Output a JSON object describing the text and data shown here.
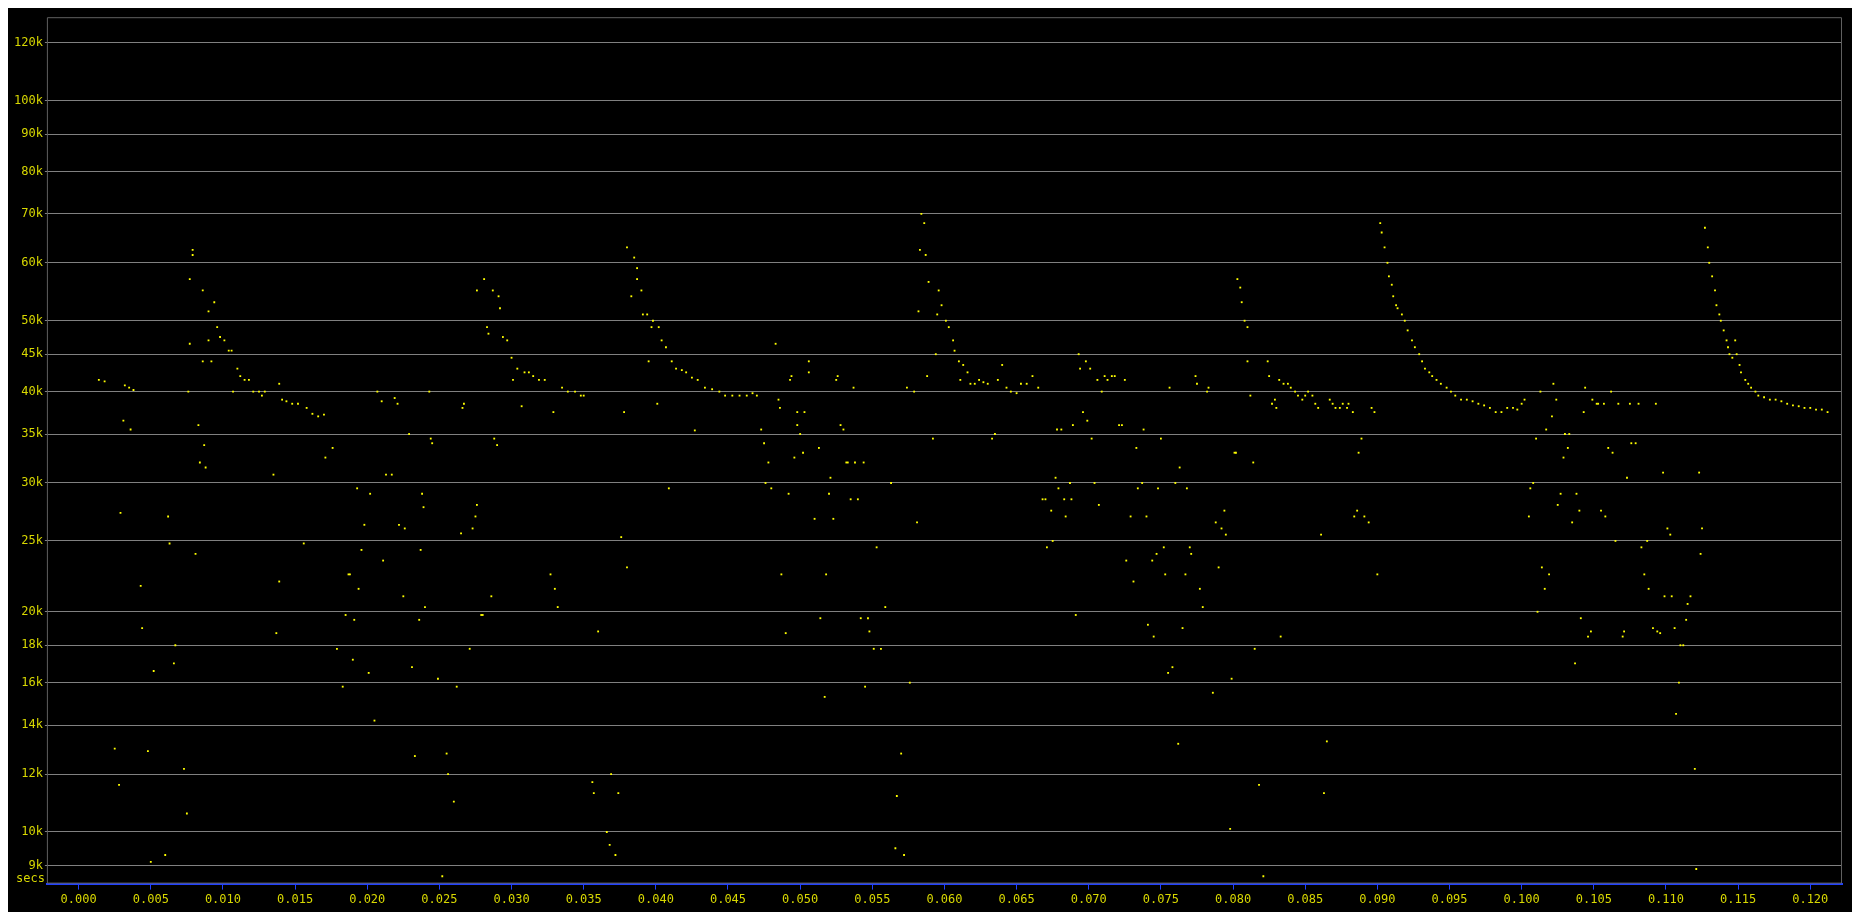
{
  "chart_data": {
    "type": "scatter",
    "xlabel": "secs",
    "color": "#ffff00",
    "marker": "square",
    "log": "y",
    "grid": "y",
    "xlim": [
      -0.0022,
      0.1222
    ],
    "ylim": [
      8500,
      130000
    ],
    "xticks": [
      {
        "value": 0,
        "label": "0.000"
      },
      {
        "value": 0.005,
        "label": "0.005"
      },
      {
        "value": 0.01,
        "label": "0.010"
      },
      {
        "value": 0.015,
        "label": "0.015"
      },
      {
        "value": 0.02,
        "label": "0.020"
      },
      {
        "value": 0.025,
        "label": "0.025"
      },
      {
        "value": 0.03,
        "label": "0.030"
      },
      {
        "value": 0.035,
        "label": "0.035"
      },
      {
        "value": 0.04,
        "label": "0.040"
      },
      {
        "value": 0.045,
        "label": "0.045"
      },
      {
        "value": 0.05,
        "label": "0.050"
      },
      {
        "value": 0.055,
        "label": "0.055"
      },
      {
        "value": 0.06,
        "label": "0.060"
      },
      {
        "value": 0.065,
        "label": "0.065"
      },
      {
        "value": 0.07,
        "label": "0.070"
      },
      {
        "value": 0.075,
        "label": "0.075"
      },
      {
        "value": 0.08,
        "label": "0.080"
      },
      {
        "value": 0.085,
        "label": "0.085"
      },
      {
        "value": 0.09,
        "label": "0.090"
      },
      {
        "value": 0.095,
        "label": "0.095"
      },
      {
        "value": 0.1,
        "label": "0.100"
      },
      {
        "value": 0.105,
        "label": "0.105"
      },
      {
        "value": 0.11,
        "label": "0.110"
      },
      {
        "value": 0.115,
        "label": "0.115"
      },
      {
        "value": 0.12,
        "label": "0.120"
      }
    ],
    "yticks": [
      {
        "value": 9000,
        "label": "9k"
      },
      {
        "value": 10000,
        "label": "10k"
      },
      {
        "value": 12000,
        "label": "12k"
      },
      {
        "value": 14000,
        "label": "14k"
      },
      {
        "value": 16000,
        "label": "16k"
      },
      {
        "value": 18000,
        "label": "18k"
      },
      {
        "value": 20000,
        "label": "20k"
      },
      {
        "value": 25000,
        "label": "25k"
      },
      {
        "value": 30000,
        "label": "30k"
      },
      {
        "value": 35000,
        "label": "35k"
      },
      {
        "value": 40000,
        "label": "40k"
      },
      {
        "value": 45000,
        "label": "45k"
      },
      {
        "value": 50000,
        "label": "50k"
      },
      {
        "value": 60000,
        "label": "60k"
      },
      {
        "value": 70000,
        "label": "70k"
      },
      {
        "value": 80000,
        "label": "80k"
      },
      {
        "value": 90000,
        "label": "90k"
      },
      {
        "value": 100000,
        "label": "100k"
      },
      {
        "value": 120000,
        "label": "120k"
      }
    ],
    "x": [
      0.0014,
      0.0018,
      0.0032,
      0.0035,
      0.0038,
      0.0031,
      0.0036,
      0.0029,
      0.0025,
      0.0028,
      0.0043,
      0.0044,
      0.0048,
      0.0052,
      0.005,
      0.006,
      0.0062,
      0.0063,
      0.0066,
      0.0067,
      0.0073,
      0.0075,
      0.0076,
      0.0077,
      0.0077,
      0.0079,
      0.0079,
      0.0081,
      0.0083,
      0.0084,
      0.0086,
      0.0086,
      0.0087,
      0.0088,
      0.009,
      0.009,
      0.0092,
      0.0094,
      0.0096,
      0.0098,
      0.0101,
      0.0104,
      0.0106,
      0.0107,
      0.011,
      0.0112,
      0.0115,
      0.0118,
      0.0121,
      0.0125,
      0.0127,
      0.0129,
      0.0135,
      0.0137,
      0.0139,
      0.0139,
      0.0141,
      0.0144,
      0.0148,
      0.0152,
      0.0156,
      0.0158,
      0.0162,
      0.0166,
      0.017,
      0.0171,
      0.0176,
      0.0179,
      0.0183,
      0.0185,
      0.0187,
      0.0188,
      0.019,
      0.0191,
      0.0193,
      0.0194,
      0.0196,
      0.0198,
      0.0201,
      0.0202,
      0.0205,
      0.0207,
      0.021,
      0.0211,
      0.0213,
      0.0217,
      0.0219,
      0.0221,
      0.0222,
      0.0225,
      0.0226,
      0.0229,
      0.0231,
      0.0233,
      0.0236,
      0.0237,
      0.0238,
      0.0239,
      0.024,
      0.0243,
      0.0244,
      0.0245,
      0.0249,
      0.0252,
      0.0255,
      0.0256,
      0.026,
      0.0262,
      0.0265,
      0.0266,
      0.0267,
      0.0271,
      0.0273,
      0.0275,
      0.0276,
      0.0276,
      0.0279,
      0.028,
      0.0281,
      0.0283,
      0.0284,
      0.0286,
      0.0287,
      0.0288,
      0.029,
      0.0291,
      0.0292,
      0.0294,
      0.0297,
      0.03,
      0.0301,
      0.0304,
      0.0307,
      0.0309,
      0.0312,
      0.0315,
      0.0319,
      0.0323,
      0.0327,
      0.0329,
      0.033,
      0.0332,
      0.0335,
      0.0339,
      0.0344,
      0.0348,
      0.035,
      0.0356,
      0.0357,
      0.036,
      0.0366,
      0.0368,
      0.0369,
      0.0372,
      0.0374,
      0.0376,
      0.0378,
      0.038,
      0.038,
      0.0383,
      0.0385,
      0.0387,
      0.0387,
      0.039,
      0.0391,
      0.0394,
      0.0395,
      0.0397,
      0.0398,
      0.0401,
      0.0402,
      0.0404,
      0.0407,
      0.0409,
      0.0411,
      0.0414,
      0.0418,
      0.0421,
      0.0425,
      0.0427,
      0.0429,
      0.0434,
      0.0439,
      0.0444,
      0.0448,
      0.0453,
      0.0458,
      0.0463,
      0.0467,
      0.047,
      0.0473,
      0.0475,
      0.0476,
      0.0478,
      0.048,
      0.0483,
      0.0485,
      0.0486,
      0.0487,
      0.049,
      0.0492,
      0.0493,
      0.0494,
      0.0496,
      0.0498,
      0.0498,
      0.05,
      0.0502,
      0.0503,
      0.0506,
      0.0506,
      0.051,
      0.0513,
      0.0514,
      0.0517,
      0.0518,
      0.052,
      0.0521,
      0.0523,
      0.0525,
      0.0526,
      0.0528,
      0.053,
      0.0532,
      0.0533,
      0.0535,
      0.0537,
      0.0538,
      0.054,
      0.0542,
      0.0544,
      0.0545,
      0.0547,
      0.0548,
      0.0551,
      0.0553,
      0.0556,
      0.0559,
      0.0563,
      0.0566,
      0.0567,
      0.057,
      0.0572,
      0.0574,
      0.0576,
      0.0579,
      0.0581,
      0.0582,
      0.0583,
      0.0584,
      0.0586,
      0.0587,
      0.0588,
      0.0589,
      0.0592,
      0.0594,
      0.0595,
      0.0596,
      0.0598,
      0.0601,
      0.0603,
      0.0606,
      0.0607,
      0.061,
      0.0611,
      0.0613,
      0.0616,
      0.0618,
      0.0621,
      0.0624,
      0.0627,
      0.063,
      0.0633,
      0.0635,
      0.0637,
      0.064,
      0.0643,
      0.0646,
      0.065,
      0.0653,
      0.0657,
      0.0661,
      0.0665,
      0.0668,
      0.067,
      0.0671,
      0.0674,
      0.0675,
      0.0677,
      0.0678,
      0.0679,
      0.0681,
      0.0683,
      0.0684,
      0.0687,
      0.0688,
      0.0689,
      0.0691,
      0.0693,
      0.0694,
      0.0696,
      0.0698,
      0.0699,
      0.0701,
      0.0702,
      0.0704,
      0.0706,
      0.0707,
      0.0709,
      0.0711,
      0.0713,
      0.0716,
      0.0718,
      0.0721,
      0.0723,
      0.0725,
      0.0726,
      0.0729,
      0.0731,
      0.0733,
      0.0734,
      0.0737,
      0.0738,
      0.074,
      0.0741,
      0.0744,
      0.0745,
      0.0747,
      0.0748,
      0.075,
      0.0752,
      0.0753,
      0.0755,
      0.0756,
      0.0758,
      0.076,
      0.0762,
      0.0763,
      0.0765,
      0.0767,
      0.0768,
      0.077,
      0.0771,
      0.0774,
      0.0775,
      0.0777,
      0.0779,
      0.0782,
      0.0783,
      0.0786,
      0.0788,
      0.079,
      0.0792,
      0.0794,
      0.0795,
      0.0798,
      0.0799,
      0.0801,
      0.0802,
      0.0803,
      0.0805,
      0.0806,
      0.0808,
      0.081,
      0.081,
      0.0812,
      0.0814,
      0.0815,
      0.0818,
      0.0821,
      0.0824,
      0.0825,
      0.0827,
      0.0829,
      0.083,
      0.0832,
      0.0833,
      0.0835,
      0.0838,
      0.084,
      0.0843,
      0.0845,
      0.0848,
      0.085,
      0.0852,
      0.0855,
      0.0857,
      0.0859,
      0.0861,
      0.0863,
      0.0865,
      0.0867,
      0.0869,
      0.0871,
      0.0874,
      0.0876,
      0.0879,
      0.088,
      0.0883,
      0.0884,
      0.0886,
      0.0887,
      0.0889,
      0.0891,
      0.0894,
      0.0896,
      0.0898,
      0.09,
      0.0902,
      0.0903,
      0.0905,
      0.0907,
      0.0908,
      0.091,
      0.0911,
      0.0913,
      0.0914,
      0.0917,
      0.0919,
      0.0921,
      0.0924,
      0.0926,
      0.0929,
      0.0931,
      0.0933,
      0.0936,
      0.0938,
      0.0941,
      0.0944,
      0.0948,
      0.0951,
      0.0954,
      0.0958,
      0.0962,
      0.0966,
      0.097,
      0.0974,
      0.0978,
      0.0982,
      0.0986,
      0.099,
      0.0994,
      0.0997,
      0.1,
      0.1002,
      0.1005,
      0.1006,
      0.1008,
      0.101,
      0.1011,
      0.1013,
      0.1014,
      0.1016,
      0.1017,
      0.1019,
      0.1021,
      0.1022,
      0.1024,
      0.1025,
      0.1027,
      0.1029,
      0.103,
      0.1032,
      0.1033,
      0.1035,
      0.1037,
      0.1038,
      0.104,
      0.1041,
      0.1043,
      0.1044,
      0.1046,
      0.1048,
      0.1049,
      0.1052,
      0.1053,
      0.1055,
      0.1057,
      0.1058,
      0.106,
      0.1062,
      0.1063,
      0.1065,
      0.1067,
      0.107,
      0.1071,
      0.1073,
      0.1075,
      0.1076,
      0.1079,
      0.1081,
      0.1083,
      0.1085,
      0.1087,
      0.1088,
      0.1091,
      0.1093,
      0.1094,
      0.1096,
      0.1098,
      0.1099,
      0.1101,
      0.1103,
      0.1104,
      0.1106,
      0.1107,
      0.1109,
      0.111,
      0.1112,
      0.1114,
      0.1115,
      0.1117,
      0.112,
      0.1121,
      0.1123,
      0.1124,
      0.1125,
      0.1127,
      0.1129,
      0.113,
      0.1132,
      0.1134,
      0.1135,
      0.1137,
      0.1138,
      0.114,
      0.1142,
      0.1143,
      0.1144,
      0.1146,
      0.1148,
      0.1149,
      0.1151,
      0.1152,
      0.1155,
      0.1157,
      0.1159,
      0.1162,
      0.1164,
      0.1168,
      0.1172,
      0.1176,
      0.118,
      0.1184,
      0.1188,
      0.1192,
      0.1196,
      0.12,
      0.1204,
      0.1208,
      0.1212
    ],
    "values": [
      41500,
      41300,
      40800,
      40500,
      40200,
      36500,
      35500,
      27300,
      13000,
      11600,
      21700,
      19000,
      12900,
      16600,
      9100,
      9300,
      27000,
      24800,
      17000,
      18000,
      12200,
      10600,
      40000,
      46500,
      57000,
      62500,
      61500,
      24000,
      36000,
      32000,
      44000,
      55000,
      33800,
      31500,
      47000,
      51500,
      44000,
      53000,
      49000,
      47500,
      47000,
      45500,
      45500,
      40000,
      43000,
      42000,
      41500,
      41500,
      40000,
      40000,
      39500,
      40000,
      30800,
      18700,
      22000,
      41000,
      39000,
      38800,
      38500,
      38500,
      24800,
      38000,
      37300,
      37000,
      37200,
      32500,
      33500,
      17800,
      15800,
      19800,
      22500,
      22500,
      17200,
      19500,
      29500,
      21500,
      24300,
      26300,
      16500,
      29000,
      14200,
      40000,
      38800,
      23500,
      30800,
      30800,
      39200,
      38500,
      26300,
      21000,
      26000,
      35000,
      16800,
      12700,
      19500,
      24300,
      29000,
      27800,
      20300,
      40000,
      34500,
      34000,
      16200,
      8700,
      12800,
      12000,
      11000,
      15800,
      25600,
      38000,
      38500,
      17800,
      26000,
      27000,
      28000,
      55000,
      19800,
      19800,
      57000,
      49000,
      48000,
      21000,
      55000,
      34500,
      33800,
      54000,
      52000,
      47500,
      47000,
      44500,
      41500,
      43000,
      38200,
      42500,
      42500,
      42000,
      41500,
      41500,
      22500,
      37500,
      21500,
      20300,
      40500,
      40000,
      40000,
      39500,
      39500,
      11700,
      11300,
      18800,
      10000,
      9600,
      12000,
      9300,
      11300,
      25300,
      37500,
      23000,
      63000,
      54000,
      61000,
      59000,
      57000,
      55000,
      51000,
      51000,
      44000,
      49000,
      50000,
      38500,
      49000,
      47000,
      46000,
      29500,
      44000,
      43000,
      42800,
      42500,
      41800,
      35400,
      41500,
      40500,
      40300,
      40000,
      39500,
      39500,
      39500,
      39500,
      39800,
      39500,
      35500,
      34000,
      30000,
      32000,
      29500,
      46500,
      39000,
      38000,
      22500,
      18700,
      29000,
      41500,
      42000,
      32500,
      37500,
      36000,
      35000,
      33000,
      37500,
      42500,
      44000,
      26800,
      33500,
      19600,
      15300,
      22500,
      29000,
      30500,
      26800,
      41500,
      42000,
      36000,
      35500,
      32000,
      32000,
      28500,
      40500,
      32000,
      28500,
      19600,
      32000,
      15800,
      19600,
      18800,
      17800,
      24500,
      17800,
      20300,
      30000,
      9500,
      11200,
      12800,
      9300,
      40500,
      16000,
      40000,
      26500,
      51500,
      62500,
      70000,
      68000,
      61500,
      42000,
      56500,
      34500,
      45000,
      51000,
      55000,
      52500,
      50000,
      49000,
      47000,
      45500,
      44000,
      41500,
      43500,
      42500,
      41000,
      41000,
      41500,
      41200,
      41000,
      34500,
      35000,
      41500,
      43500,
      40500,
      40000,
      39800,
      41000,
      41000,
      42000,
      40500,
      28500,
      28500,
      24500,
      27500,
      25000,
      30500,
      35500,
      29500,
      35500,
      28500,
      27000,
      30000,
      28500,
      36000,
      19800,
      45000,
      43000,
      37500,
      44000,
      36500,
      43000,
      34500,
      30000,
      41500,
      28000,
      40000,
      42000,
      41500,
      42000,
      42000,
      36000,
      36000,
      41500,
      23500,
      27000,
      22000,
      33500,
      29500,
      30000,
      35500,
      27000,
      19200,
      23500,
      18500,
      24000,
      29500,
      34500,
      24500,
      22500,
      16500,
      40500,
      16800,
      30000,
      13200,
      31500,
      19000,
      22500,
      29500,
      24500,
      24000,
      42000,
      41000,
      21500,
      20300,
      40000,
      40500,
      15500,
      26500,
      23000,
      26000,
      27500,
      25500,
      10100,
      16200,
      33000,
      33000,
      57000,
      55500,
      53000,
      50000,
      49000,
      44000,
      39500,
      32000,
      17800,
      11600,
      8700,
      44000,
      42000,
      38500,
      39000,
      38000,
      41500,
      18500,
      41000,
      41000,
      40500,
      40000,
      39500,
      39000,
      39500,
      40000,
      39500,
      38500,
      38000,
      25500,
      11300,
      13300,
      39000,
      38500,
      38000,
      38000,
      38500,
      38000,
      38500,
      37500,
      27000,
      27500,
      33000,
      34500,
      27000,
      26500,
      38000,
      37500,
      22500,
      68000,
      66000,
      63000,
      60000,
      57500,
      56000,
      54000,
      52500,
      52000,
      51000,
      50000,
      48500,
      47000,
      46000,
      45000,
      44000,
      43000,
      42500,
      42000,
      41500,
      41000,
      40500,
      40000,
      39500,
      39000,
      39000,
      38800,
      38500,
      38300,
      38000,
      37500,
      37500,
      38000,
      38000,
      37800,
      38500,
      39000,
      27000,
      29500,
      30000,
      34500,
      20000,
      40000,
      23000,
      21500,
      35500,
      22500,
      37000,
      41000,
      39000,
      28000,
      29000,
      32500,
      35000,
      33500,
      35000,
      26500,
      17000,
      29000,
      27500,
      19600,
      37500,
      40500,
      18500,
      18800,
      39000,
      38500,
      38500,
      27500,
      38500,
      27000,
      33500,
      40000,
      33000,
      25000,
      38500,
      18500,
      18800,
      30500,
      38500,
      34000,
      34000,
      38500,
      24500,
      22500,
      25000,
      21500,
      19000,
      38500,
      18800,
      18700,
      31000,
      21000,
      26000,
      25500,
      21000,
      19000,
      14500,
      16000,
      18000,
      18000,
      19500,
      20500,
      21000,
      12200,
      8900,
      31000,
      24000,
      26000,
      67000,
      63000,
      60000,
      57500,
      55000,
      52500,
      51000,
      50000,
      48500,
      47000,
      46000,
      45000,
      44500,
      47000,
      45000,
      43500,
      42500,
      41500,
      41000,
      40500,
      40000,
      39500,
      39300,
      39000,
      39000,
      38800,
      38500,
      38300,
      38200,
      38000,
      38000,
      37800,
      37800,
      37500
    ]
  }
}
